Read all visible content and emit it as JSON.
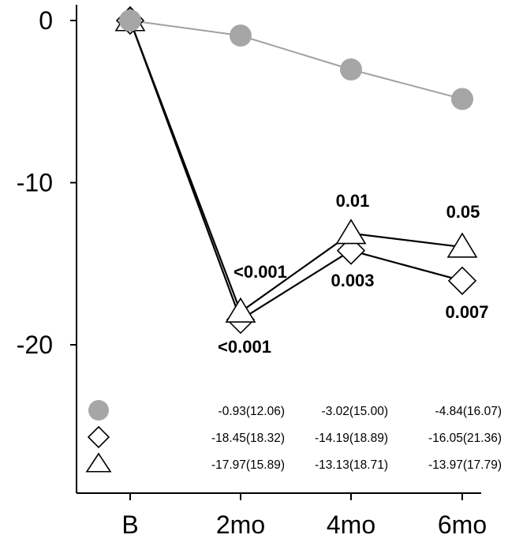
{
  "chart_data": {
    "type": "line",
    "categories": [
      "B",
      "2mo",
      "4mo",
      "6mo"
    ],
    "yticks": [
      "0",
      "-10",
      "-20"
    ],
    "ytick_values": [
      0,
      -10,
      -20
    ],
    "ylim": [
      -29,
      1.2
    ],
    "series": [
      {
        "marker": "circle",
        "color": "#a6a6a6",
        "line_color": "#a0a0a0",
        "values": [
          0,
          -0.93,
          -3.02,
          -4.84
        ]
      },
      {
        "marker": "diamond",
        "color": "#000000",
        "line_color": "#000000",
        "values": [
          0,
          -18.45,
          -14.19,
          -16.05
        ]
      },
      {
        "marker": "triangle",
        "color": "#000000",
        "line_color": "#000000",
        "values": [
          0,
          -17.97,
          -13.13,
          -13.97
        ]
      }
    ],
    "pvalues": {
      "triangle": [
        null,
        "<0.001",
        "0.01",
        "0.05"
      ],
      "diamond": [
        null,
        "<0.001",
        "0.003",
        "0.007"
      ]
    },
    "table": [
      [
        "-0.93(12.06)",
        "-3.02(15.00)",
        "-4.84(16.07)"
      ],
      [
        "-18.45(18.32)",
        "-14.19(18.89)",
        "-16.05(21.36)"
      ],
      [
        "-17.97(15.89)",
        "-13.13(18.71)",
        "-13.97(17.79)"
      ]
    ]
  }
}
